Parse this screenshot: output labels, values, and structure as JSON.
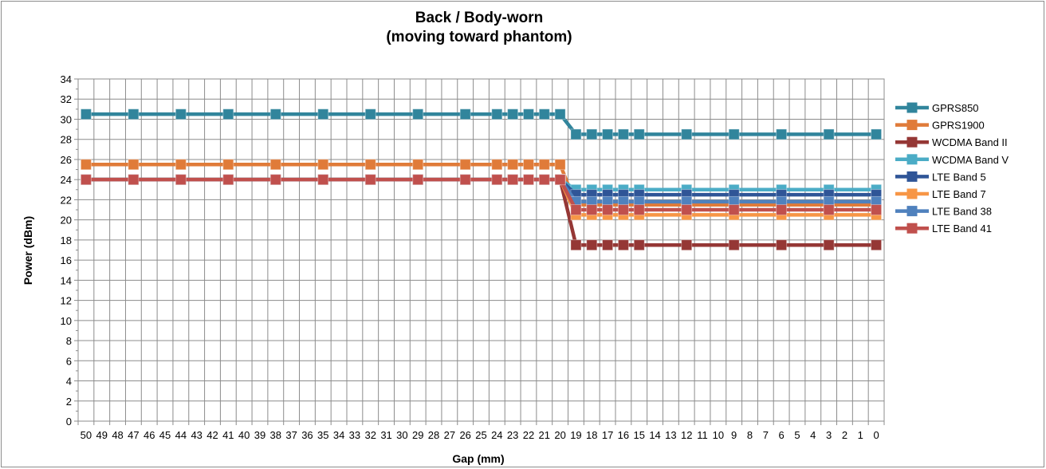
{
  "chart_data": {
    "type": "line",
    "title": [
      "Back / Body-worn",
      "(moving toward phantom)"
    ],
    "xlabel": "Gap (mm)",
    "ylabel": "Power (dBm)",
    "x": [
      50,
      49,
      48,
      47,
      46,
      45,
      44,
      43,
      42,
      41,
      40,
      39,
      38,
      37,
      36,
      35,
      34,
      33,
      32,
      31,
      30,
      29,
      28,
      27,
      26,
      25,
      24,
      23,
      22,
      21,
      20,
      19,
      18,
      17,
      16,
      15,
      14,
      13,
      12,
      11,
      10,
      9,
      8,
      7,
      6,
      5,
      4,
      3,
      2,
      1,
      0
    ],
    "x_reversed": true,
    "ylim": [
      0,
      34
    ],
    "ytick_step": 2,
    "grid": true,
    "legend_position": "right",
    "marker_x": [
      50,
      47,
      44,
      41,
      38,
      35,
      32,
      29,
      26,
      24,
      23,
      22,
      21,
      20,
      19,
      18,
      17,
      16,
      15,
      12,
      9,
      6,
      3,
      0
    ],
    "series": [
      {
        "name": "GPRS850",
        "color": "#31859c",
        "values": [
          [
            50,
            30.5
          ],
          [
            20,
            30.5
          ],
          [
            19,
            28.5
          ],
          [
            0,
            28.5
          ]
        ]
      },
      {
        "name": "GPRS1900",
        "color": "#e07b39",
        "values": [
          [
            50,
            25.5
          ],
          [
            20,
            25.5
          ],
          [
            19,
            21.5
          ],
          [
            0,
            21.5
          ]
        ]
      },
      {
        "name": "WCDMA Band II",
        "color": "#953735",
        "values": [
          [
            50,
            24
          ],
          [
            20,
            24
          ],
          [
            19,
            17.5
          ],
          [
            0,
            17.5
          ]
        ]
      },
      {
        "name": "WCDMA Band V",
        "color": "#4bacc6",
        "values": [
          [
            50,
            24
          ],
          [
            20,
            24
          ],
          [
            19,
            23
          ],
          [
            0,
            23
          ]
        ]
      },
      {
        "name": "LTE Band 5",
        "color": "#2f5597",
        "values": [
          [
            50,
            24
          ],
          [
            20,
            24
          ],
          [
            19,
            22.5
          ],
          [
            0,
            22.5
          ]
        ]
      },
      {
        "name": "LTE Band 7",
        "color": "#f79646",
        "values": [
          [
            50,
            24
          ],
          [
            20,
            24
          ],
          [
            19,
            20.5
          ],
          [
            0,
            20.5
          ]
        ]
      },
      {
        "name": "LTE Band 38",
        "color": "#4f81bd",
        "values": [
          [
            50,
            24
          ],
          [
            20,
            24
          ],
          [
            19,
            21.8
          ],
          [
            0,
            21.8
          ]
        ]
      },
      {
        "name": "LTE Band 41",
        "color": "#c0504d",
        "values": [
          [
            50,
            24
          ],
          [
            20,
            24
          ],
          [
            19,
            21
          ],
          [
            0,
            21
          ]
        ]
      }
    ]
  }
}
